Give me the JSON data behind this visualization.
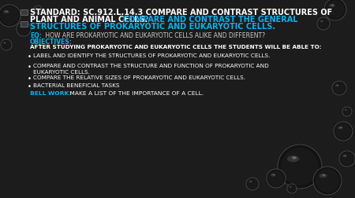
{
  "bg_color": "#1c1c1c",
  "title_white_line1": "STANDARD: SC.912.L.14.3 COMPARE AND CONTRAST STRUCTURES OF",
  "title_white_line2": "PLANT AND ANIMAL CELLS. ",
  "title_cyan": "COMPARE AND CONTRAST THE GENERAL\nSTRUCTURES OF PROKARYOTIC AND EUKARYOTIC CELLS.",
  "eq_label": "EQ:",
  "eq_text": " HOW ARE PROKARYOTIC AND EUKARYOTIC CELLS ALIKE AND DIFFERENT?",
  "obj_label": "OBJECTIVES:",
  "obj_sub": "AFTER STUDYING PROKARYOTIC AND EUKARYOTIC CELLS THE STUDENTS WILL BE ABLE TO:",
  "bullets": [
    "LABEL AND IDENTIFY THE STRUCTURES OF PROKARYOTIC AND EUKARYOTIC CELLS.",
    "COMPARE AND CONTRAST THE STRUCTURE AND FUNCTION OF PROKARYOTIC AND\nEUKARYOTIC CELLS.",
    "COMPARE THE RELATIVE SIZES OF PROKARYOTIC AND EUKARYOTIC CELLS.",
    "BACTERIAL BENEFICIAL TASKS"
  ],
  "bell_label": "BELL WORK:",
  "bell_text": " MAKE A LIST OF THE IMPORTANCE OF A CELL.",
  "white": "#ffffff",
  "cyan": "#00b4f0",
  "lightgray": "#cccccc",
  "darkgray": "#888888"
}
